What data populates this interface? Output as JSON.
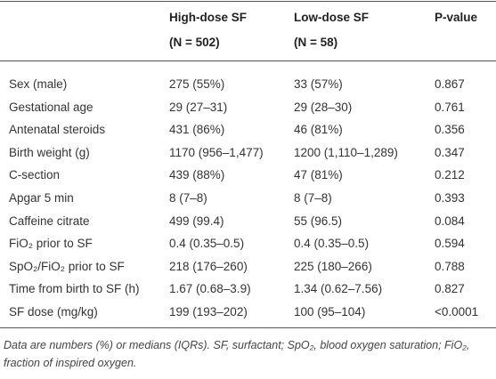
{
  "table": {
    "columns": [
      {
        "title": "High-dose SF",
        "subtitle": "(N = 502)"
      },
      {
        "title": "Low-dose SF",
        "subtitle": "(N = 58)"
      },
      {
        "title": "P-value"
      }
    ],
    "rows": [
      [
        "Sex (male)",
        "275 (55%)",
        "33 (57%)",
        "0.867"
      ],
      [
        "Gestational age",
        "29 (27–31)",
        "29 (28–30)",
        "0.761"
      ],
      [
        "Antenatal steroids",
        "431 (86%)",
        "46 (81%)",
        "0.356"
      ],
      [
        "Birth weight (g)",
        "1170 (956–1,477)",
        "1200 (1,110–1,289)",
        "0.347"
      ],
      [
        "C-section",
        "439 (88%)",
        "47 (81%)",
        "0.212"
      ],
      [
        "Apgar 5 min",
        "8 (7–8)",
        "8 (7–8)",
        "0.393"
      ],
      [
        "Caffeine citrate",
        "499 (99.4)",
        "55 (96.5)",
        "0.084"
      ],
      [
        "FiO₂ prior to SF",
        "0.4 (0.35–0.5)",
        "0.4 (0.35–0.5)",
        "0.594"
      ],
      [
        "SpO₂/FiO₂ prior to SF",
        "218 (176–260)",
        "225 (180–266)",
        "0.788"
      ],
      [
        "Time from birth to SF (h)",
        "1.67 (0.68–3.9)",
        "1.34 (0.62–7.56)",
        "0.827"
      ],
      [
        "SF dose (mg/kg)",
        "199 (193–202)",
        "100 (95–104)",
        "<0.0001"
      ]
    ],
    "footnote": "Data are numbers (%) or medians (IQRs). SF, surfactant; SpO₂, blood oxygen saturation; FiO₂, fraction of inspired oxygen."
  }
}
